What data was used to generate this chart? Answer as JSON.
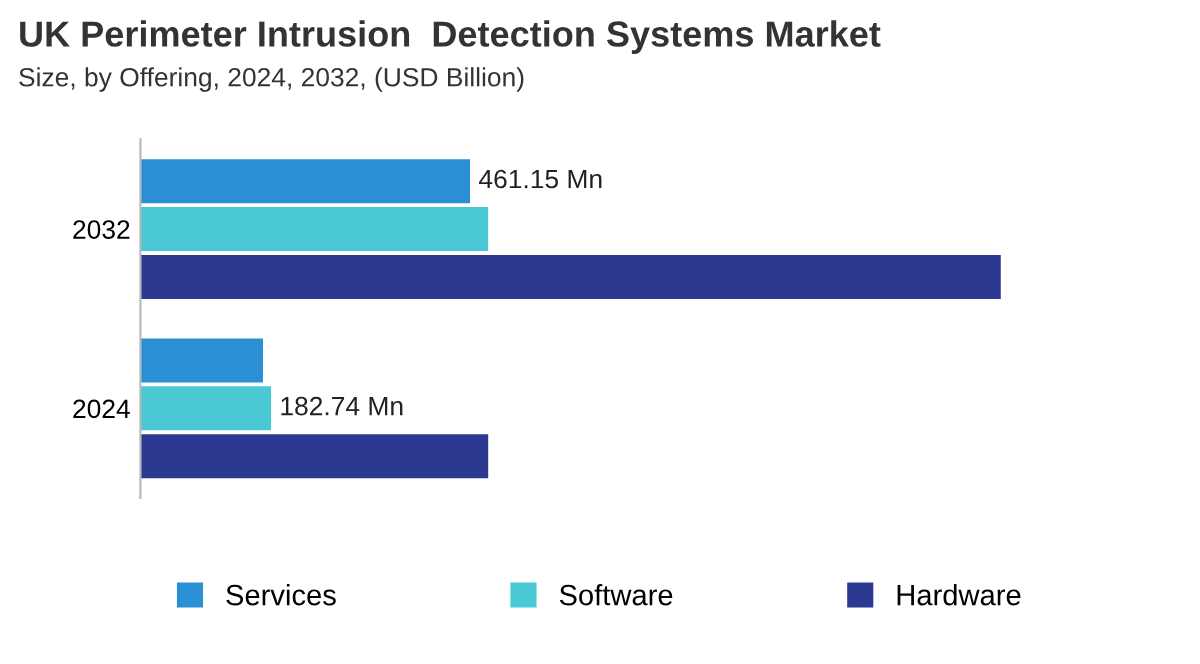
{
  "chart_data": {
    "type": "bar",
    "orientation": "horizontal",
    "title": "UK Perimeter Intrusion  Detection Systems Market",
    "subtitle": "Size, by Offering, 2024, 2032, (USD Billion)",
    "categories": [
      "2032",
      "2024"
    ],
    "series": [
      {
        "name": "Services",
        "color": "#2b8fd4",
        "values": [
          461.15,
          171.5
        ],
        "value_labels": [
          "461.15 Mn",
          null
        ]
      },
      {
        "name": "Software",
        "color": "#4ac8d4",
        "values": [
          486.5,
          182.74
        ],
        "value_labels": [
          null,
          "182.74 Mn"
        ]
      },
      {
        "name": "Hardware",
        "color": "#2b3990",
        "values": [
          1203.5,
          486.5
        ]
      }
    ],
    "legend": "bottom",
    "grid": false
  }
}
